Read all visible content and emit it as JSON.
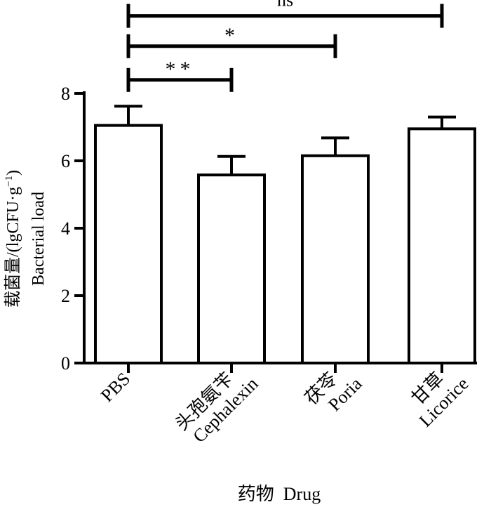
{
  "chart_data": {
    "type": "bar",
    "categories": [
      {
        "zh": "PBS",
        "en": ""
      },
      {
        "zh": "头孢氨苄",
        "en": "Cephalexin"
      },
      {
        "zh": "茯苓",
        "en": "Poria"
      },
      {
        "zh": "甘草",
        "en": "Licorice"
      }
    ],
    "values": [
      7.05,
      5.58,
      6.15,
      6.95
    ],
    "errors": [
      0.57,
      0.55,
      0.53,
      0.35
    ],
    "ylim": [
      0,
      8
    ],
    "yticks": [
      0,
      2,
      4,
      6,
      8
    ],
    "ylabel": {
      "line1_prefix": "载菌量/(lgCFU·g",
      "line1_sup": "−1",
      "line1_suffix": ")",
      "line2": "Bacterial load"
    },
    "xlabel": "药物  Drug",
    "significance": [
      {
        "from": 0,
        "to": 1,
        "label": "**",
        "y": 8.4
      },
      {
        "from": 0,
        "to": 2,
        "label": "*",
        "y": 9.4
      },
      {
        "from": 0,
        "to": 3,
        "label": "ns",
        "y": 10.3
      }
    ],
    "bar_color": "#ffffff",
    "stroke_color": "#000000"
  }
}
